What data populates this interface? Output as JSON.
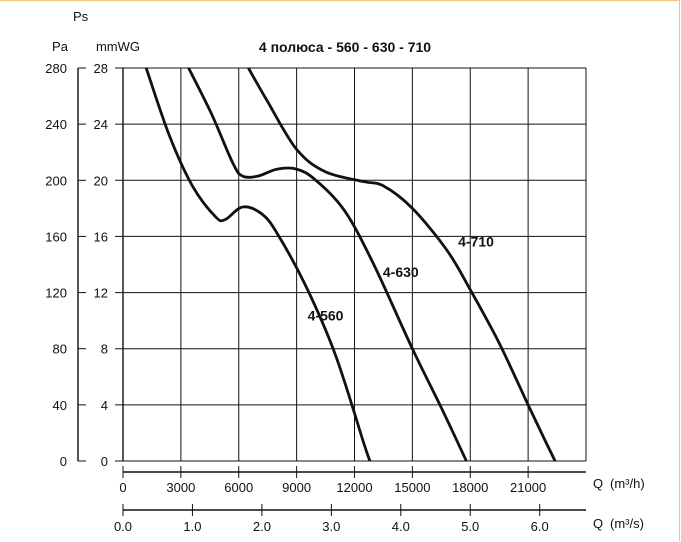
{
  "chart_data": {
    "type": "line",
    "title": "4 полюса - 560 - 630 - 710",
    "y_axis_pa": {
      "unit_label": "Pa",
      "name_label": "Ps",
      "ticks": [
        "0",
        "40",
        "80",
        "120",
        "160",
        "200",
        "240",
        "280"
      ],
      "range": [
        0,
        280
      ]
    },
    "y_axis_mmwg": {
      "unit_label": "mmWG",
      "ticks": [
        "0",
        "4",
        "8",
        "12",
        "16",
        "20",
        "24",
        "28"
      ],
      "range": [
        0,
        28
      ]
    },
    "x_axis_m3h": {
      "label": "Q",
      "unit": "(m³/h)",
      "ticks": [
        "0",
        "3000",
        "6000",
        "9000",
        "12000",
        "15000",
        "18000",
        "21000"
      ],
      "range": [
        0,
        24000
      ]
    },
    "x_axis_m3s": {
      "label": "Q",
      "unit": "(m³/s)",
      "ticks": [
        "0.0",
        "1.0",
        "2.0",
        "3.0",
        "4.0",
        "5.0",
        "6.0"
      ]
    },
    "grid": true,
    "series": [
      {
        "name": "4-560",
        "x": [
          1200,
          2400,
          3600,
          4800,
          5300,
          6200,
          7200,
          8000,
          9500,
          11000,
          12500,
          12800
        ],
        "y": [
          280,
          232,
          196,
          174,
          172,
          181,
          176,
          162,
          124,
          76,
          12,
          0
        ]
      },
      {
        "name": "4-630",
        "x": [
          3400,
          4600,
          5700,
          6200,
          7000,
          8000,
          9000,
          10000,
          11500,
          13000,
          15000,
          16500,
          17800
        ],
        "y": [
          280,
          247,
          212,
          203,
          203,
          208,
          208,
          200,
          178,
          140,
          80,
          38,
          0
        ]
      },
      {
        "name": "4-710",
        "x": [
          6500,
          7500,
          9000,
          10500,
          12500,
          13500,
          15000,
          16800,
          18000,
          19500,
          21000,
          21900,
          22400
        ],
        "y": [
          280,
          256,
          222,
          206,
          199,
          196,
          180,
          150,
          122,
          84,
          40,
          14,
          0
        ]
      }
    ]
  }
}
